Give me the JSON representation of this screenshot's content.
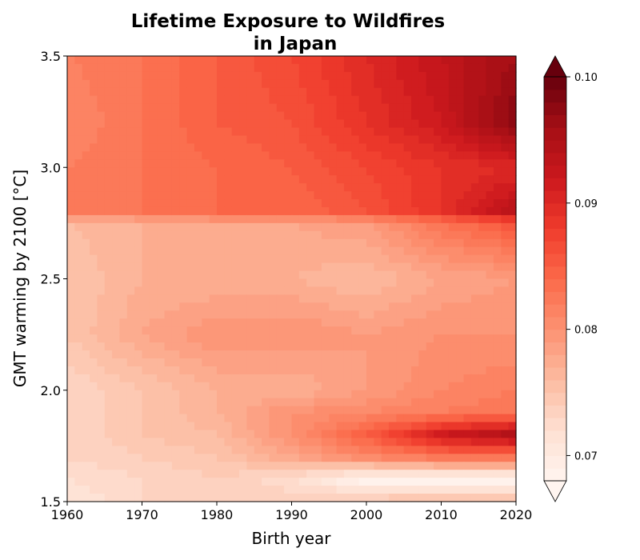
{
  "chart_data": {
    "type": "heatmap",
    "title_lines": [
      "Lifetime Exposure to Wildfires",
      "in Japan"
    ],
    "xlabel": "Birth year",
    "ylabel": "GMT warming by 2100 [°C]",
    "xlim": [
      1960,
      2020
    ],
    "ylim": [
      1.5,
      3.5
    ],
    "xticks": [
      "1960",
      "1970",
      "1980",
      "1990",
      "2000",
      "2010",
      "2020"
    ],
    "yticks": [
      "1.5",
      "2.0",
      "2.5",
      "3.0",
      "3.5"
    ],
    "colormap": "Reds",
    "colorbar": {
      "vmin": 0.068,
      "vmax": 0.1,
      "extend": "both",
      "ticks": [
        "0.07",
        "0.08",
        "0.09",
        "0.10"
      ]
    },
    "x": [
      1960,
      1970,
      1980,
      1990,
      2000,
      2010,
      2020
    ],
    "y": [
      1.5,
      1.6,
      1.7,
      1.8,
      1.9,
      2.0,
      2.25,
      2.5,
      2.75,
      2.8,
      3.0,
      3.2,
      3.5
    ],
    "z": [
      [
        0.071,
        0.073,
        0.074,
        0.074,
        0.075,
        0.076,
        0.076
      ],
      [
        0.072,
        0.073,
        0.074,
        0.072,
        0.068,
        0.068,
        0.068
      ],
      [
        0.073,
        0.074,
        0.075,
        0.078,
        0.081,
        0.083,
        0.083
      ],
      [
        0.073,
        0.075,
        0.076,
        0.08,
        0.085,
        0.092,
        0.095
      ],
      [
        0.073,
        0.075,
        0.077,
        0.08,
        0.081,
        0.082,
        0.083
      ],
      [
        0.073,
        0.075,
        0.077,
        0.077,
        0.079,
        0.081,
        0.082
      ],
      [
        0.075,
        0.078,
        0.08,
        0.08,
        0.079,
        0.08,
        0.08
      ],
      [
        0.075,
        0.077,
        0.077,
        0.077,
        0.076,
        0.078,
        0.079
      ],
      [
        0.076,
        0.077,
        0.078,
        0.078,
        0.079,
        0.083,
        0.086
      ],
      [
        0.082,
        0.083,
        0.084,
        0.084,
        0.086,
        0.089,
        0.094
      ],
      [
        0.082,
        0.083,
        0.084,
        0.085,
        0.087,
        0.089,
        0.09
      ],
      [
        0.081,
        0.083,
        0.085,
        0.086,
        0.089,
        0.092,
        0.098
      ],
      [
        0.082,
        0.083,
        0.085,
        0.087,
        0.09,
        0.093,
        0.096
      ]
    ]
  }
}
